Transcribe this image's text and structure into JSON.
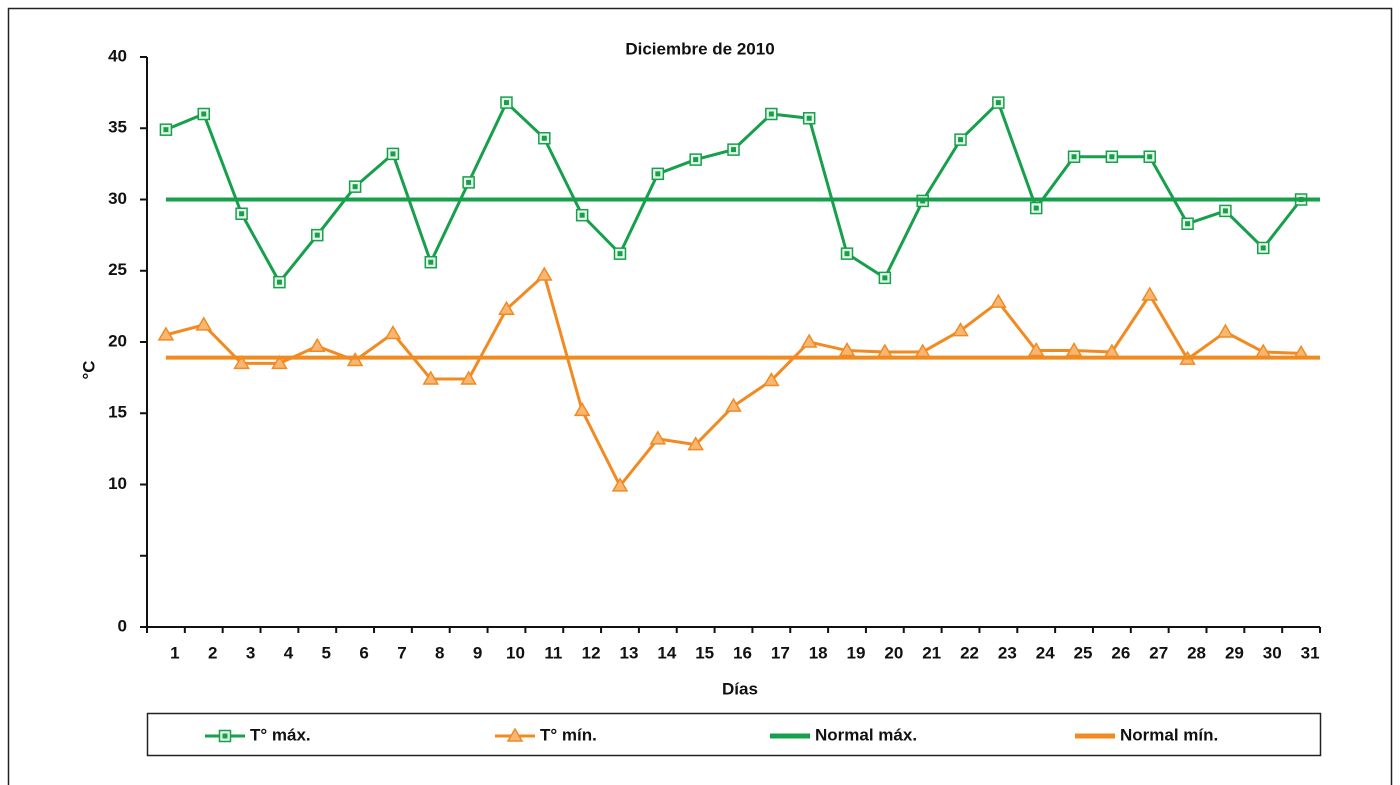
{
  "chart_data": {
    "type": "line",
    "title": "Diciembre de 2010",
    "x_label": "Días",
    "y_label": "°C",
    "categories": [
      1,
      2,
      3,
      4,
      5,
      6,
      7,
      8,
      9,
      10,
      11,
      12,
      13,
      14,
      15,
      16,
      17,
      18,
      19,
      20,
      21,
      22,
      23,
      24,
      25,
      26,
      27,
      28,
      29,
      30,
      31
    ],
    "series": [
      {
        "name": "T° máx.",
        "color": "#17a04b",
        "marker": "square",
        "values": [
          34.9,
          36,
          29,
          24.2,
          27.5,
          30.9,
          33.2,
          25.6,
          31.2,
          36.8,
          34.3,
          28.9,
          26.2,
          31.8,
          32.8,
          33.5,
          36,
          35.7,
          26.2,
          24.5,
          29.9,
          34.2,
          36.8,
          29.4,
          33,
          33,
          33,
          28.3,
          29.2,
          26.6,
          30
        ]
      },
      {
        "name": "T° mín.",
        "color": "#f28a22",
        "marker": "triangle",
        "values": [
          20.5,
          21.2,
          18.5,
          18.5,
          19.7,
          18.7,
          20.6,
          17.4,
          17.4,
          22.3,
          24.7,
          15.2,
          9.9,
          13.2,
          12.8,
          15.5,
          17.3,
          20,
          19.4,
          19.3,
          19.3,
          20.8,
          22.8,
          19.4,
          19.4,
          19.3,
          23.3,
          18.8,
          20.7,
          19.3,
          19.2
        ]
      },
      {
        "name": "Normal máx.",
        "color": "#17a04b",
        "marker": "none",
        "values": [
          30,
          30,
          30,
          30,
          30,
          30,
          30,
          30,
          30,
          30,
          30,
          30,
          30,
          30,
          30,
          30,
          30,
          30,
          30,
          30,
          30,
          30,
          30,
          30,
          30,
          30,
          30,
          30,
          30,
          30,
          30
        ]
      },
      {
        "name": "Normal mín.",
        "color": "#f28a22",
        "marker": "none",
        "values": [
          18.9,
          18.9,
          18.9,
          18.9,
          18.9,
          18.9,
          18.9,
          18.9,
          18.9,
          18.9,
          18.9,
          18.9,
          18.9,
          18.9,
          18.9,
          18.9,
          18.9,
          18.9,
          18.9,
          18.9,
          18.9,
          18.9,
          18.9,
          18.9,
          18.9,
          18.9,
          18.9,
          18.9,
          18.9,
          18.9,
          18.9
        ]
      }
    ],
    "ylim": [
      0,
      40
    ],
    "yticks": [
      0,
      {
        "value": 5,
        "label": null
      },
      10,
      15,
      20,
      25,
      30,
      35,
      40
    ],
    "grid": false,
    "legend": "bottom"
  }
}
